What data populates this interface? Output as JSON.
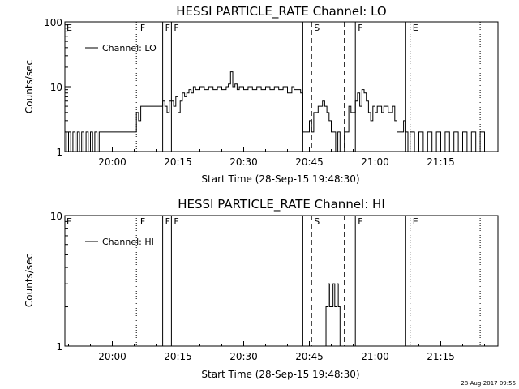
{
  "footer": {
    "stamp": "28-Aug-2017 09:56"
  },
  "chart_data": [
    {
      "type": "line",
      "title": "HESSI PARTICLE_RATE Channel: LO",
      "xlabel": "Start Time (28-Sep-15 19:48:30)",
      "ylabel": "Counts/sec",
      "yscale": "log",
      "ylim": [
        1,
        100
      ],
      "xlim_minutes": [
        -10.5,
        38.5
      ],
      "x_ticks": [
        {
          "t": 0,
          "label": "20:00"
        },
        {
          "t": 15,
          "label": "20:15"
        },
        {
          "t": 30,
          "label": "20:30"
        },
        {
          "t": 45,
          "label": "20:45"
        },
        {
          "t": 60,
          "label": "21:00"
        },
        {
          "t": 75,
          "label": "21:15"
        }
      ],
      "y_ticks": [
        {
          "v": 1,
          "label": "1"
        },
        {
          "v": 10,
          "label": "10"
        },
        {
          "v": 100,
          "label": "100"
        }
      ],
      "legend": "Channel: LO",
      "markers": [
        {
          "t": 5.5,
          "style": "dotted",
          "label": ""
        },
        {
          "t": 11.5,
          "style": "solid",
          "label": "F"
        },
        {
          "t": 13.5,
          "style": "solid",
          "label": "F"
        },
        {
          "t": 43.5,
          "style": "solid",
          "label": ""
        },
        {
          "t": 45.5,
          "style": "dashed",
          "label": "S"
        },
        {
          "t": 53.0,
          "style": "dashed",
          "label": ""
        },
        {
          "t": 55.5,
          "style": "solid",
          "label": "F"
        },
        {
          "t": 67.0,
          "style": "solid",
          "label": ""
        },
        {
          "t": 68.0,
          "style": "dotted",
          "label": "E"
        },
        {
          "t": 84.0,
          "style": "dotted",
          "label": ""
        }
      ],
      "edge_labels": [
        {
          "t": -11.5,
          "label": "E"
        },
        {
          "t": 6.0,
          "label": "F"
        }
      ],
      "series": [
        {
          "name": "Channel: LO",
          "points": [
            [
              -11.5,
              2
            ],
            [
              -10.5,
              1
            ],
            [
              -10,
              2
            ],
            [
              -9.5,
              1
            ],
            [
              -9,
              2
            ],
            [
              -8.5,
              1
            ],
            [
              -8,
              2
            ],
            [
              -7.5,
              1
            ],
            [
              -7,
              2
            ],
            [
              -6.5,
              1
            ],
            [
              -6,
              2
            ],
            [
              -5.5,
              1
            ],
            [
              -5,
              2
            ],
            [
              -4.5,
              1
            ],
            [
              -4,
              2
            ],
            [
              -3.5,
              1
            ],
            [
              -3,
              2
            ],
            [
              -2.5,
              2
            ],
            [
              -1,
              2
            ],
            [
              0,
              2
            ],
            [
              3,
              2
            ],
            [
              5,
              2
            ],
            [
              5.5,
              4
            ],
            [
              6,
              3
            ],
            [
              6.5,
              5
            ],
            [
              8,
              5
            ],
            [
              10,
              5
            ],
            [
              11,
              5
            ],
            [
              11.5,
              6
            ],
            [
              12,
              5
            ],
            [
              12.5,
              4
            ],
            [
              13,
              6
            ],
            [
              13.5,
              6
            ],
            [
              14,
              5
            ],
            [
              14.5,
              7
            ],
            [
              15,
              4
            ],
            [
              15.5,
              6
            ],
            [
              16,
              8
            ],
            [
              16.5,
              7
            ],
            [
              17,
              8
            ],
            [
              17.5,
              9
            ],
            [
              18,
              8
            ],
            [
              18.5,
              10
            ],
            [
              19,
              9
            ],
            [
              20,
              10
            ],
            [
              21,
              9
            ],
            [
              22,
              10
            ],
            [
              23,
              9
            ],
            [
              24,
              10
            ],
            [
              25,
              9
            ],
            [
              26,
              10
            ],
            [
              26.5,
              11
            ],
            [
              27,
              17
            ],
            [
              27.5,
              10
            ],
            [
              28,
              11
            ],
            [
              28.5,
              9
            ],
            [
              29,
              10
            ],
            [
              30,
              9
            ],
            [
              31,
              10
            ],
            [
              32,
              9
            ],
            [
              33,
              10
            ],
            [
              34,
              9
            ],
            [
              35,
              10
            ],
            [
              36,
              9
            ],
            [
              37,
              10
            ],
            [
              38,
              9
            ],
            [
              39,
              10
            ],
            [
              40,
              8
            ],
            [
              41,
              10
            ],
            [
              41.5,
              9
            ],
            [
              42,
              9
            ],
            [
              43,
              8
            ],
            [
              43.5,
              2
            ],
            [
              44.5,
              2
            ],
            [
              45,
              3
            ],
            [
              45.5,
              2
            ],
            [
              46,
              4
            ],
            [
              46.5,
              4
            ],
            [
              47,
              5
            ],
            [
              48,
              6
            ],
            [
              48.5,
              5
            ],
            [
              49,
              4
            ],
            [
              49.5,
              3
            ],
            [
              50,
              2
            ],
            [
              50.5,
              2
            ],
            [
              51,
              1
            ],
            [
              51.5,
              2
            ],
            [
              52,
              1
            ],
            [
              52.5,
              1
            ],
            [
              53,
              2
            ],
            [
              53.5,
              2
            ],
            [
              54,
              5
            ],
            [
              54.5,
              4
            ],
            [
              55,
              4
            ],
            [
              55.5,
              6
            ],
            [
              56,
              8
            ],
            [
              56.5,
              5
            ],
            [
              57,
              9
            ],
            [
              57.5,
              8
            ],
            [
              58,
              6
            ],
            [
              58.5,
              4
            ],
            [
              59,
              3
            ],
            [
              59.5,
              5
            ],
            [
              60,
              4
            ],
            [
              60.5,
              5
            ],
            [
              61,
              5
            ],
            [
              61.5,
              4
            ],
            [
              62,
              5
            ],
            [
              63,
              4
            ],
            [
              64,
              5
            ],
            [
              64.5,
              3
            ],
            [
              65,
              2
            ],
            [
              66,
              2
            ],
            [
              66.5,
              3
            ],
            [
              67,
              2
            ],
            [
              67.5,
              1
            ],
            [
              68,
              2
            ],
            [
              69,
              1
            ],
            [
              70,
              2
            ],
            [
              71,
              1
            ],
            [
              72,
              2
            ],
            [
              73,
              1
            ],
            [
              74,
              2
            ],
            [
              75,
              1
            ],
            [
              76,
              2
            ],
            [
              77,
              1
            ],
            [
              78,
              2
            ],
            [
              79,
              1
            ],
            [
              80,
              2
            ],
            [
              81,
              1
            ],
            [
              82,
              2
            ],
            [
              83,
              1
            ],
            [
              84,
              2
            ],
            [
              85,
              1
            ],
            [
              86,
              1
            ]
          ]
        }
      ]
    },
    {
      "type": "line",
      "title": "HESSI PARTICLE_RATE Channel: HI",
      "xlabel": "Start Time (28-Sep-15 19:48:30)",
      "ylabel": "Counts/sec",
      "yscale": "log",
      "ylim": [
        1,
        10
      ],
      "x_ticks": [
        {
          "t": 0,
          "label": "20:00"
        },
        {
          "t": 15,
          "label": "20:15"
        },
        {
          "t": 30,
          "label": "20:30"
        },
        {
          "t": 45,
          "label": "20:45"
        },
        {
          "t": 60,
          "label": "21:00"
        },
        {
          "t": 75,
          "label": "21:15"
        }
      ],
      "y_ticks": [
        {
          "v": 1,
          "label": "1"
        },
        {
          "v": 10,
          "label": "10"
        }
      ],
      "legend": "Channel: HI",
      "markers": [
        {
          "t": 5.5,
          "style": "dotted",
          "label": ""
        },
        {
          "t": 11.5,
          "style": "solid",
          "label": "F"
        },
        {
          "t": 13.5,
          "style": "solid",
          "label": "F"
        },
        {
          "t": 43.5,
          "style": "solid",
          "label": ""
        },
        {
          "t": 45.5,
          "style": "dashed",
          "label": "S"
        },
        {
          "t": 53.0,
          "style": "dashed",
          "label": ""
        },
        {
          "t": 55.5,
          "style": "solid",
          "label": "F"
        },
        {
          "t": 67.0,
          "style": "solid",
          "label": ""
        },
        {
          "t": 68.0,
          "style": "dotted",
          "label": "E"
        },
        {
          "t": 84.0,
          "style": "dotted",
          "label": ""
        }
      ],
      "edge_labels": [
        {
          "t": -11.5,
          "label": "E"
        },
        {
          "t": 6.0,
          "label": "F"
        }
      ],
      "series": [
        {
          "name": "Channel: HI",
          "points": [
            [
              48.5,
              1
            ],
            [
              48.8,
              2
            ],
            [
              49.3,
              3
            ],
            [
              49.6,
              2
            ],
            [
              50.0,
              2
            ],
            [
              50.4,
              3
            ],
            [
              50.8,
              2
            ],
            [
              51.3,
              3
            ],
            [
              51.6,
              2
            ],
            [
              52.0,
              1
            ]
          ]
        }
      ]
    }
  ]
}
